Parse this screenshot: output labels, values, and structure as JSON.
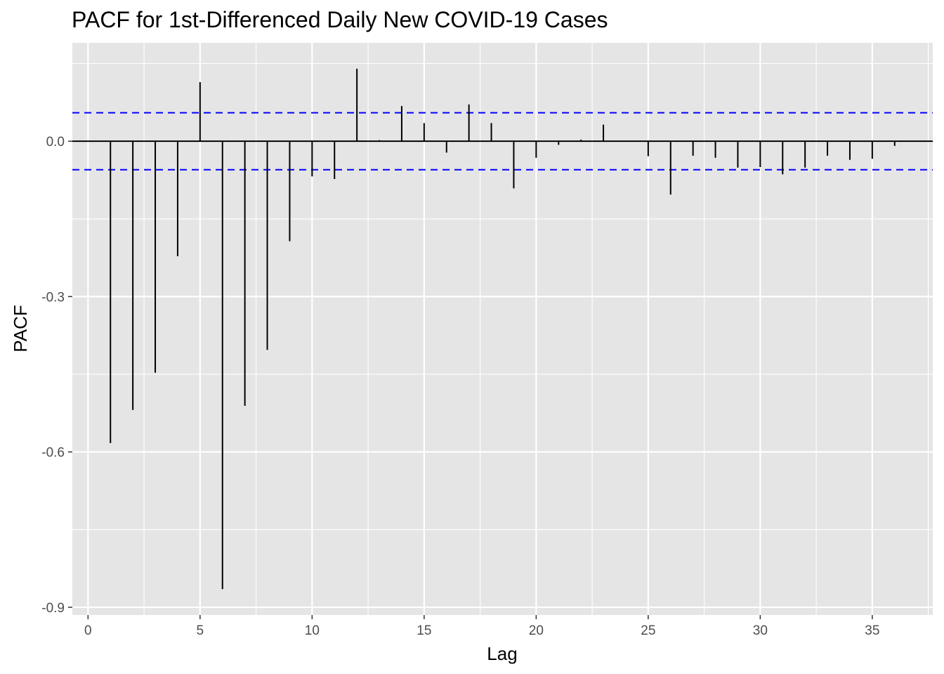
{
  "chart_data": {
    "type": "bar",
    "title": "PACF for 1st-Differenced Daily New COVID-19 Cases",
    "xlabel": "Lag",
    "ylabel": "PACF",
    "xlim": [
      -0.7,
      37.7
    ],
    "ylim": [
      -0.915,
      0.19
    ],
    "x_ticks": [
      0,
      5,
      10,
      15,
      20,
      25,
      30,
      35
    ],
    "x_tick_labels": [
      "0",
      "5",
      "10",
      "15",
      "20",
      "25",
      "30",
      "35"
    ],
    "y_ticks": [
      -0.9,
      -0.6,
      -0.3,
      0.0
    ],
    "y_tick_labels": [
      "-0.9",
      "-0.6",
      "-0.3",
      "0.0"
    ],
    "grid": true,
    "confidence_band": 0.055,
    "lags": [
      1,
      2,
      3,
      4,
      5,
      6,
      7,
      8,
      9,
      10,
      11,
      12,
      13,
      14,
      15,
      16,
      17,
      18,
      19,
      20,
      21,
      22,
      23,
      24,
      25,
      26,
      27,
      28,
      29,
      30,
      31,
      32,
      33,
      34,
      35,
      36
    ],
    "values": [
      -0.583,
      -0.519,
      -0.447,
      -0.222,
      0.114,
      -0.865,
      -0.511,
      -0.403,
      -0.193,
      -0.068,
      -0.073,
      0.14,
      0.002,
      0.068,
      0.035,
      -0.022,
      0.071,
      0.035,
      -0.091,
      -0.032,
      -0.007,
      0.003,
      0.032,
      -0.001,
      -0.029,
      -0.103,
      -0.028,
      -0.032,
      -0.051,
      -0.05,
      -0.064,
      -0.051,
      -0.028,
      -0.036,
      -0.034,
      -0.009
    ],
    "colors": {
      "panel": "#e5e5e5",
      "grid": "#ffffff",
      "bars": "#000000",
      "confidence": "#0000ff",
      "tick_label": "#4d4d4d",
      "tick_mark": "#333333"
    }
  }
}
